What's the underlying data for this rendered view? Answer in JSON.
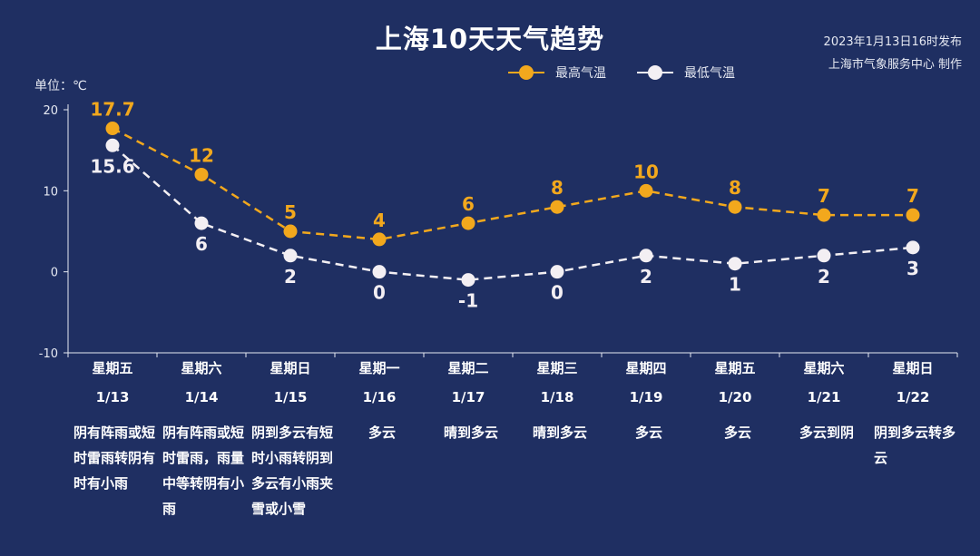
{
  "title": "上海10天天气趋势",
  "publish_info": {
    "time": "2023年1月13日16时发布",
    "producer": "上海市气象服务中心 制作"
  },
  "unit_label": "单位：℃",
  "colors": {
    "high": "#f2a81d",
    "low": "#f3eff3",
    "background": "#1f2f62"
  },
  "chart_data": {
    "type": "line",
    "title": "上海10天天气趋势",
    "ylabel": "单位：℃",
    "ylim": [
      -10,
      20
    ],
    "yticks": [
      20,
      10,
      0,
      -10
    ],
    "legend_position": "top-right",
    "grid": false,
    "categories": [
      "1/13",
      "1/14",
      "1/15",
      "1/16",
      "1/17",
      "1/18",
      "1/19",
      "1/20",
      "1/21",
      "1/22"
    ],
    "weekdays": [
      "星期五",
      "星期六",
      "星期日",
      "星期一",
      "星期二",
      "星期三",
      "星期四",
      "星期五",
      "星期六",
      "星期日"
    ],
    "conditions": [
      "阴有阵雨或短时雷雨转阴有时有小雨",
      "阴有阵雨或短时雷雨，雨量中等转阴有小雨",
      "阴到多云有短时小雨转阴到多云有小雨夹雪或小雪",
      "多云",
      "晴到多云",
      "晴到多云",
      "多云",
      "多云",
      "多云到阴",
      "阴到多云转多云"
    ],
    "series": [
      {
        "name": "最高气温",
        "values": [
          17.7,
          12,
          5,
          4,
          6,
          8,
          10,
          8,
          7,
          7
        ]
      },
      {
        "name": "最低气温",
        "values": [
          15.6,
          6,
          2,
          0,
          -1,
          0,
          2,
          1,
          2,
          3
        ]
      }
    ]
  }
}
